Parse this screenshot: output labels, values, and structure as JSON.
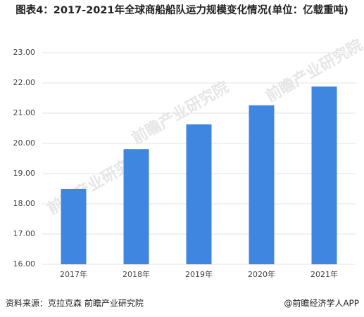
{
  "chart_data": {
    "type": "bar",
    "title": "图表4：2017-2021年全球商船船队运力规模变化情况(单位：亿载重吨)",
    "categories": [
      "2017年",
      "2018年",
      "2019年",
      "2020年",
      "2021年"
    ],
    "values": [
      18.49,
      19.81,
      20.63,
      21.26,
      21.88
    ],
    "color": "#3f86e0",
    "ylim": [
      16,
      23
    ],
    "yticks": [
      {
        "value": 16,
        "label": "16.00"
      },
      {
        "value": 17,
        "label": "17.00"
      },
      {
        "value": 18,
        "label": "18.00"
      },
      {
        "value": 19,
        "label": "19.00"
      },
      {
        "value": 20,
        "label": "20.00"
      },
      {
        "value": 21,
        "label": "21.00"
      },
      {
        "value": 22,
        "label": "22.00"
      },
      {
        "value": 23,
        "label": "23.00"
      }
    ],
    "grid": true,
    "source": "资料来源：克拉克森 前瞻产业研究院",
    "credit": "@前瞻经济学人APP",
    "watermark": "前瞻产业研究院"
  }
}
